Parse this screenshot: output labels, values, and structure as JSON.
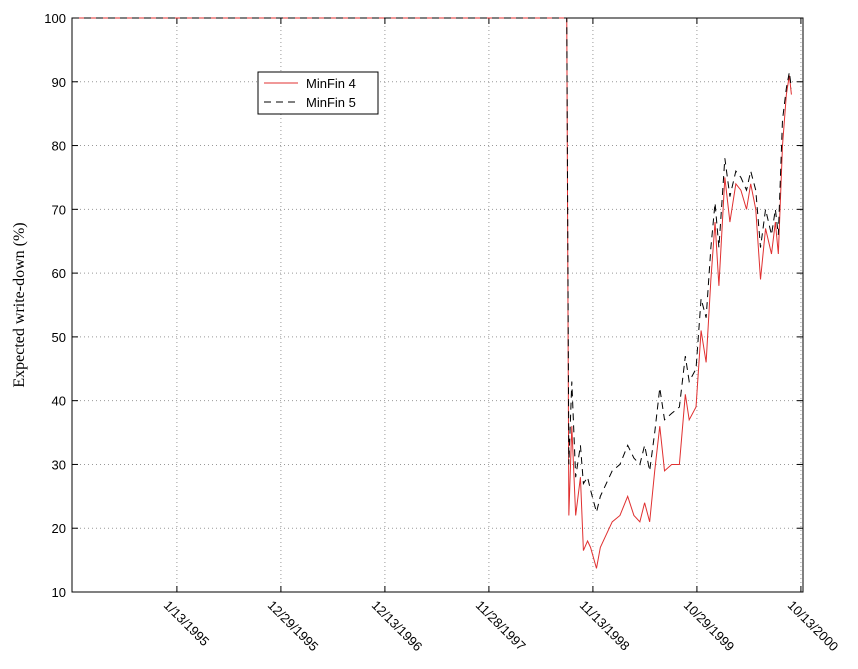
{
  "chart_data": {
    "type": "line",
    "ylabel": "Expected write-down (%)",
    "x": [
      "1994-01-25",
      "1998-08-14",
      "1998-08-17",
      "1998-08-24",
      "1998-09-03",
      "1998-09-16",
      "1998-10-02",
      "1998-10-12",
      "1998-10-26",
      "1998-11-05",
      "1998-11-25",
      "1998-12-08",
      "1998-12-28",
      "1999-01-17",
      "1999-02-12",
      "1999-03-10",
      "1999-03-31",
      "1999-04-20",
      "1999-05-06",
      "1999-05-23",
      "1999-06-09",
      "1999-06-26",
      "1999-07-12",
      "1999-08-05",
      "1999-08-31",
      "1999-09-20",
      "1999-10-03",
      "1999-10-26",
      "1999-11-12",
      "1999-11-29",
      "1999-12-15",
      "1999-12-29",
      "2000-01-11",
      "2000-01-31",
      "2000-02-17",
      "2000-03-08",
      "2000-03-25",
      "2000-04-13",
      "2000-04-27",
      "2000-05-14",
      "2000-05-30",
      "2000-06-16",
      "2000-07-06",
      "2000-07-19",
      "2000-07-29",
      "2000-08-12",
      "2000-08-25",
      "2000-09-04",
      "2000-09-11"
    ],
    "series": [
      {
        "name": "MinFin 4",
        "color": "#e03030",
        "dash": "none",
        "values": [
          100,
          100,
          100,
          22,
          36,
          22,
          28,
          16.5,
          18,
          17,
          13.7,
          17,
          19,
          21,
          22,
          25,
          22,
          21,
          24,
          21,
          29,
          36,
          29,
          30,
          30,
          41,
          37,
          39,
          51,
          46,
          59,
          68,
          58,
          75,
          68,
          74,
          73,
          70,
          74,
          70,
          59,
          67,
          63,
          68,
          63,
          80,
          88,
          91,
          88
        ]
      },
      {
        "name": "MinFin 5",
        "color": "#000000",
        "dash": "7,5",
        "values": [
          100,
          100,
          100,
          30,
          43,
          28,
          33,
          27,
          28,
          26,
          22.5,
          25,
          27,
          29,
          30,
          33,
          31,
          30,
          33,
          29,
          35,
          42,
          37,
          38,
          39,
          47,
          43,
          45,
          56,
          53,
          64,
          71,
          64,
          78,
          72,
          76,
          75,
          73,
          76,
          73,
          64,
          70,
          66,
          70,
          66,
          84,
          89,
          91.5,
          89
        ]
      }
    ],
    "xlim": [
      "1994-01-25",
      "2000-10-20"
    ],
    "xticks": [
      {
        "value": "1995-01-13",
        "label": "1/13/1995"
      },
      {
        "value": "1995-12-29",
        "label": "12/29/1995"
      },
      {
        "value": "1996-12-13",
        "label": "12/13/1996"
      },
      {
        "value": "1997-11-28",
        "label": "11/28/1997"
      },
      {
        "value": "1998-11-13",
        "label": "11/13/1998"
      },
      {
        "value": "1999-10-29",
        "label": "10/29/1999"
      },
      {
        "value": "2000-10-13",
        "label": "10/13/2000"
      }
    ],
    "ylim": [
      10,
      100
    ],
    "yticks": [
      10,
      20,
      30,
      40,
      50,
      60,
      70,
      80,
      90,
      100
    ],
    "grid": true,
    "legend": "upper left"
  }
}
